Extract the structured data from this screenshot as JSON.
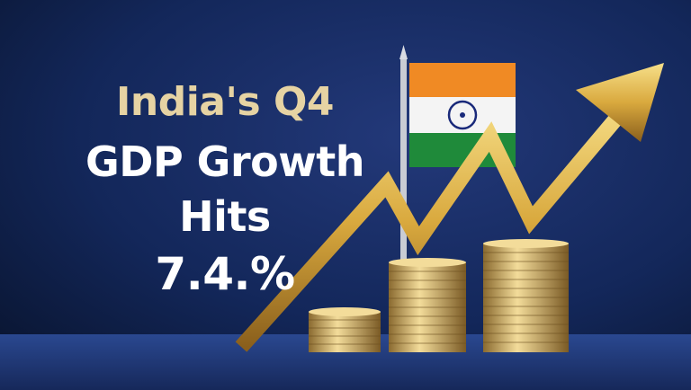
{
  "headline": {
    "line1": "India's Q4",
    "line2": "GDP Growth",
    "line3": "Hits",
    "line4": "7.4.%"
  },
  "colors": {
    "background": "#0f1f45",
    "headline_accent": "#e6d3a3",
    "headline_main": "#ffffff",
    "gold": "#d9a93e",
    "flag_saffron": "#f08a24",
    "flag_white": "#f4f4f4",
    "flag_green": "#1f8a3a",
    "chakra": "#1a2a7a"
  },
  "illustration": {
    "icons": [
      "india-flag-icon",
      "rising-arrow-icon",
      "coin-stack-icon"
    ]
  }
}
